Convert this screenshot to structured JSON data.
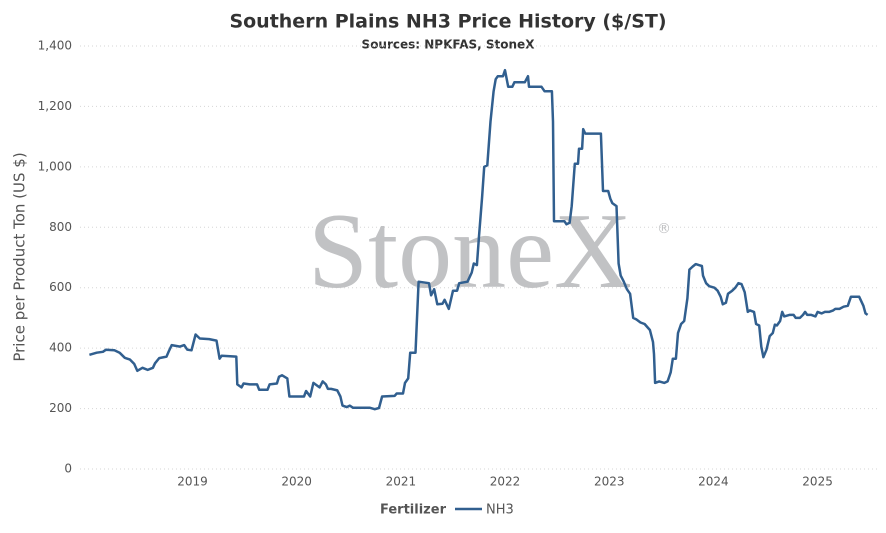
{
  "chart_data": {
    "type": "line",
    "title": "Southern Plains NH3 Price History ($/ST)",
    "subtitle": "Sources: NPKFAS, StoneX",
    "y_label": "Price per Product Ton (US $)",
    "legend_title": "Fertilizer",
    "watermark": "StoneX",
    "watermark_mark": "®",
    "xlim": [
      2017.92,
      2025.58
    ],
    "ylim": [
      0,
      1400
    ],
    "xticks": [
      2019,
      2020,
      2021,
      2022,
      2023,
      2024,
      2025
    ],
    "yticks": [
      0,
      200,
      400,
      600,
      800,
      {
        "value": 1000,
        "label": "1,000"
      },
      {
        "value": 1200,
        "label": "1,200"
      },
      {
        "value": 1400,
        "label": "1,400"
      }
    ],
    "grid": true,
    "x": [
      2018.01,
      2018.08,
      2018.14,
      2018.17,
      2018.25,
      2018.3,
      2018.35,
      2018.4,
      2018.44,
      2018.47,
      2018.52,
      2018.57,
      2018.62,
      2018.64,
      2018.68,
      2018.75,
      2018.77,
      2018.8,
      2018.88,
      2018.92,
      2018.95,
      2018.99,
      2019.03,
      2019.07,
      2019.16,
      2019.23,
      2019.26,
      2019.28,
      2019.42,
      2019.43,
      2019.47,
      2019.49,
      2019.55,
      2019.62,
      2019.64,
      2019.72,
      2019.74,
      2019.81,
      2019.83,
      2019.86,
      2019.91,
      2019.93,
      2020.07,
      2020.09,
      2020.13,
      2020.16,
      2020.2,
      2020.22,
      2020.25,
      2020.28,
      2020.3,
      2020.33,
      2020.39,
      2020.42,
      2020.44,
      2020.48,
      2020.51,
      2020.54,
      2020.7,
      2020.75,
      2020.79,
      2020.82,
      2020.94,
      2020.96,
      2021.02,
      2021.04,
      2021.07,
      2021.09,
      2021.14,
      2021.17,
      2021.27,
      2021.29,
      2021.32,
      2021.35,
      2021.4,
      2021.42,
      2021.46,
      2021.5,
      2021.54,
      2021.56,
      2021.64,
      2021.68,
      2021.7,
      2021.73,
      2021.75,
      2021.78,
      2021.8,
      2021.83,
      2021.86,
      2021.89,
      2021.91,
      2021.93,
      2021.98,
      2022.0,
      2022.03,
      2022.07,
      2022.09,
      2022.19,
      2022.22,
      2022.23,
      2022.35,
      2022.38,
      2022.45,
      2022.46,
      2022.47,
      2022.57,
      2022.59,
      2022.62,
      2022.64,
      2022.67,
      2022.7,
      2022.71,
      2022.74,
      2022.75,
      2022.77,
      2022.92,
      2022.94,
      2022.99,
      2023.01,
      2023.03,
      2023.07,
      2023.09,
      2023.11,
      2023.14,
      2023.17,
      2023.2,
      2023.23,
      2023.26,
      2023.3,
      2023.34,
      2023.39,
      2023.42,
      2023.43,
      2023.44,
      2023.48,
      2023.53,
      2023.56,
      2023.59,
      2023.61,
      2023.64,
      2023.66,
      2023.69,
      2023.72,
      2023.75,
      2023.77,
      2023.8,
      2023.83,
      2023.86,
      2023.89,
      2023.9,
      2023.93,
      2023.96,
      2024.01,
      2024.04,
      2024.07,
      2024.09,
      2024.12,
      2024.14,
      2024.18,
      2024.21,
      2024.24,
      2024.27,
      2024.3,
      2024.33,
      2024.35,
      2024.39,
      2024.41,
      2024.44,
      2024.46,
      2024.48,
      2024.51,
      2024.54,
      2024.57,
      2024.59,
      2024.61,
      2024.64,
      2024.66,
      2024.68,
      2024.73,
      2024.77,
      2024.79,
      2024.83,
      2024.86,
      2024.88,
      2024.9,
      2024.94,
      2024.98,
      2025.0,
      2025.04,
      2025.07,
      2025.11,
      2025.15,
      2025.17,
      2025.21,
      2025.25,
      2025.29,
      2025.32,
      2025.4,
      2025.44,
      2025.46,
      2025.48
    ],
    "series": [
      {
        "name": "NH3",
        "color": "#315f8f",
        "values": [
          378,
          385,
          388,
          395,
          393,
          385,
          368,
          362,
          348,
          325,
          335,
          328,
          335,
          350,
          367,
          372,
          388,
          410,
          405,
          410,
          395,
          393,
          445,
          432,
          430,
          425,
          365,
          375,
          372,
          280,
          270,
          283,
          280,
          280,
          262,
          262,
          280,
          283,
          305,
          310,
          300,
          240,
          240,
          258,
          240,
          285,
          275,
          270,
          290,
          280,
          265,
          265,
          260,
          240,
          210,
          205,
          210,
          203,
          203,
          198,
          202,
          240,
          242,
          250,
          250,
          285,
          300,
          385,
          385,
          620,
          615,
          575,
          595,
          545,
          547,
          560,
          530,
          590,
          590,
          615,
          620,
          650,
          680,
          675,
          770,
          900,
          1000,
          1005,
          1150,
          1250,
          1290,
          1300,
          1300,
          1320,
          1265,
          1265,
          1280,
          1280,
          1300,
          1265,
          1265,
          1250,
          1250,
          1150,
          820,
          820,
          810,
          815,
          870,
          1010,
          1010,
          1060,
          1060,
          1125,
          1110,
          1110,
          920,
          920,
          895,
          880,
          870,
          680,
          640,
          620,
          595,
          580,
          500,
          495,
          485,
          480,
          460,
          420,
          380,
          285,
          290,
          285,
          290,
          320,
          365,
          365,
          450,
          480,
          490,
          565,
          660,
          670,
          678,
          675,
          672,
          640,
          615,
          605,
          600,
          590,
          570,
          545,
          550,
          580,
          590,
          600,
          615,
          612,
          585,
          520,
          525,
          520,
          480,
          475,
          405,
          370,
          395,
          440,
          450,
          478,
          475,
          490,
          520,
          505,
          510,
          510,
          500,
          500,
          510,
          520,
          510,
          510,
          505,
          520,
          515,
          520,
          520,
          525,
          530,
          530,
          537,
          540,
          570,
          570,
          540,
          515,
          510
        ]
      }
    ]
  }
}
